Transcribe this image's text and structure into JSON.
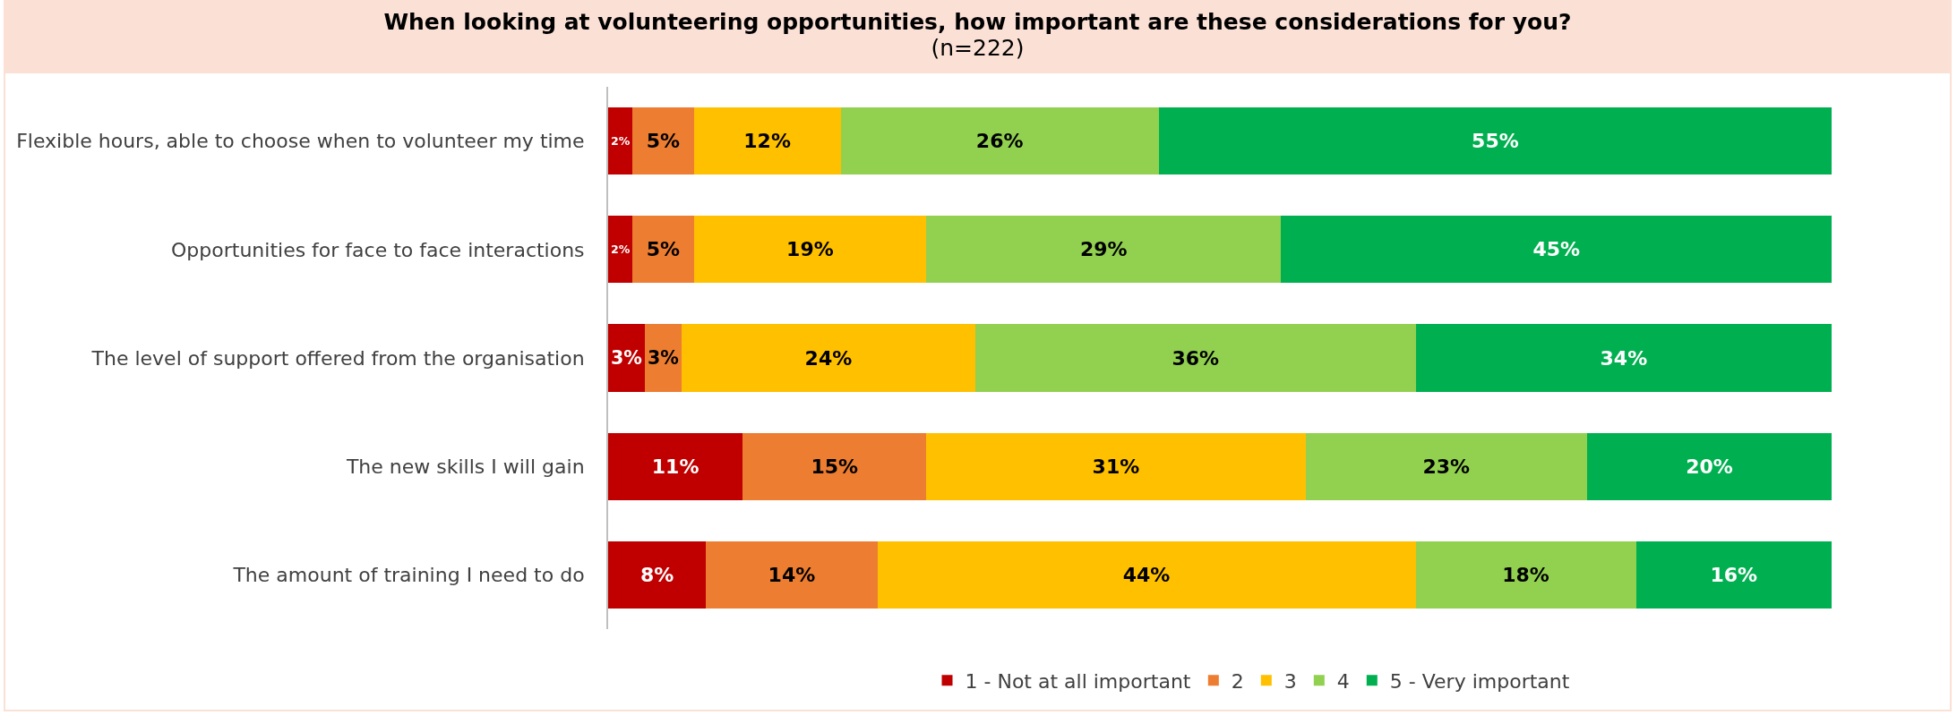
{
  "chart_data": {
    "type": "bar",
    "orientation": "horizontal",
    "stacked": true,
    "title": "When looking at volunteering opportunities, how important are these considerations for you?",
    "subtitle": "(n=222)",
    "categories": [
      "Flexible hours, able to choose when to volunteer my time",
      "Opportunities for face to face interactions",
      "The level of support offered from the organisation",
      "The new skills I will gain",
      "The amount of training I need to do"
    ],
    "series": [
      {
        "name": "1 - Not at all important",
        "color": "#c00000",
        "values": [
          2,
          2,
          3,
          11,
          8
        ],
        "value_labels": [
          "2%",
          "2%",
          "3%",
          "11%",
          "8%"
        ]
      },
      {
        "name": "2",
        "color": "#ed7d31",
        "values": [
          5,
          5,
          3,
          15,
          14
        ],
        "value_labels": [
          "5%",
          "5%",
          "3%",
          "15%",
          "14%"
        ]
      },
      {
        "name": "3",
        "color": "#ffc000",
        "values": [
          12,
          19,
          24,
          31,
          44
        ],
        "value_labels": [
          "12%",
          "19%",
          "24%",
          "31%",
          "44%"
        ]
      },
      {
        "name": "4",
        "color": "#92d050",
        "values": [
          26,
          29,
          36,
          23,
          18
        ],
        "value_labels": [
          "26%",
          "29%",
          "36%",
          "23%",
          "18%"
        ]
      },
      {
        "name": "5 - Very important",
        "color": "#00b050",
        "values": [
          55,
          45,
          34,
          20,
          16
        ],
        "value_labels": [
          "55%",
          "45%",
          "34%",
          "20%",
          "16%"
        ]
      }
    ],
    "legend": "bottom",
    "grid": false,
    "tick_labels": "y"
  }
}
